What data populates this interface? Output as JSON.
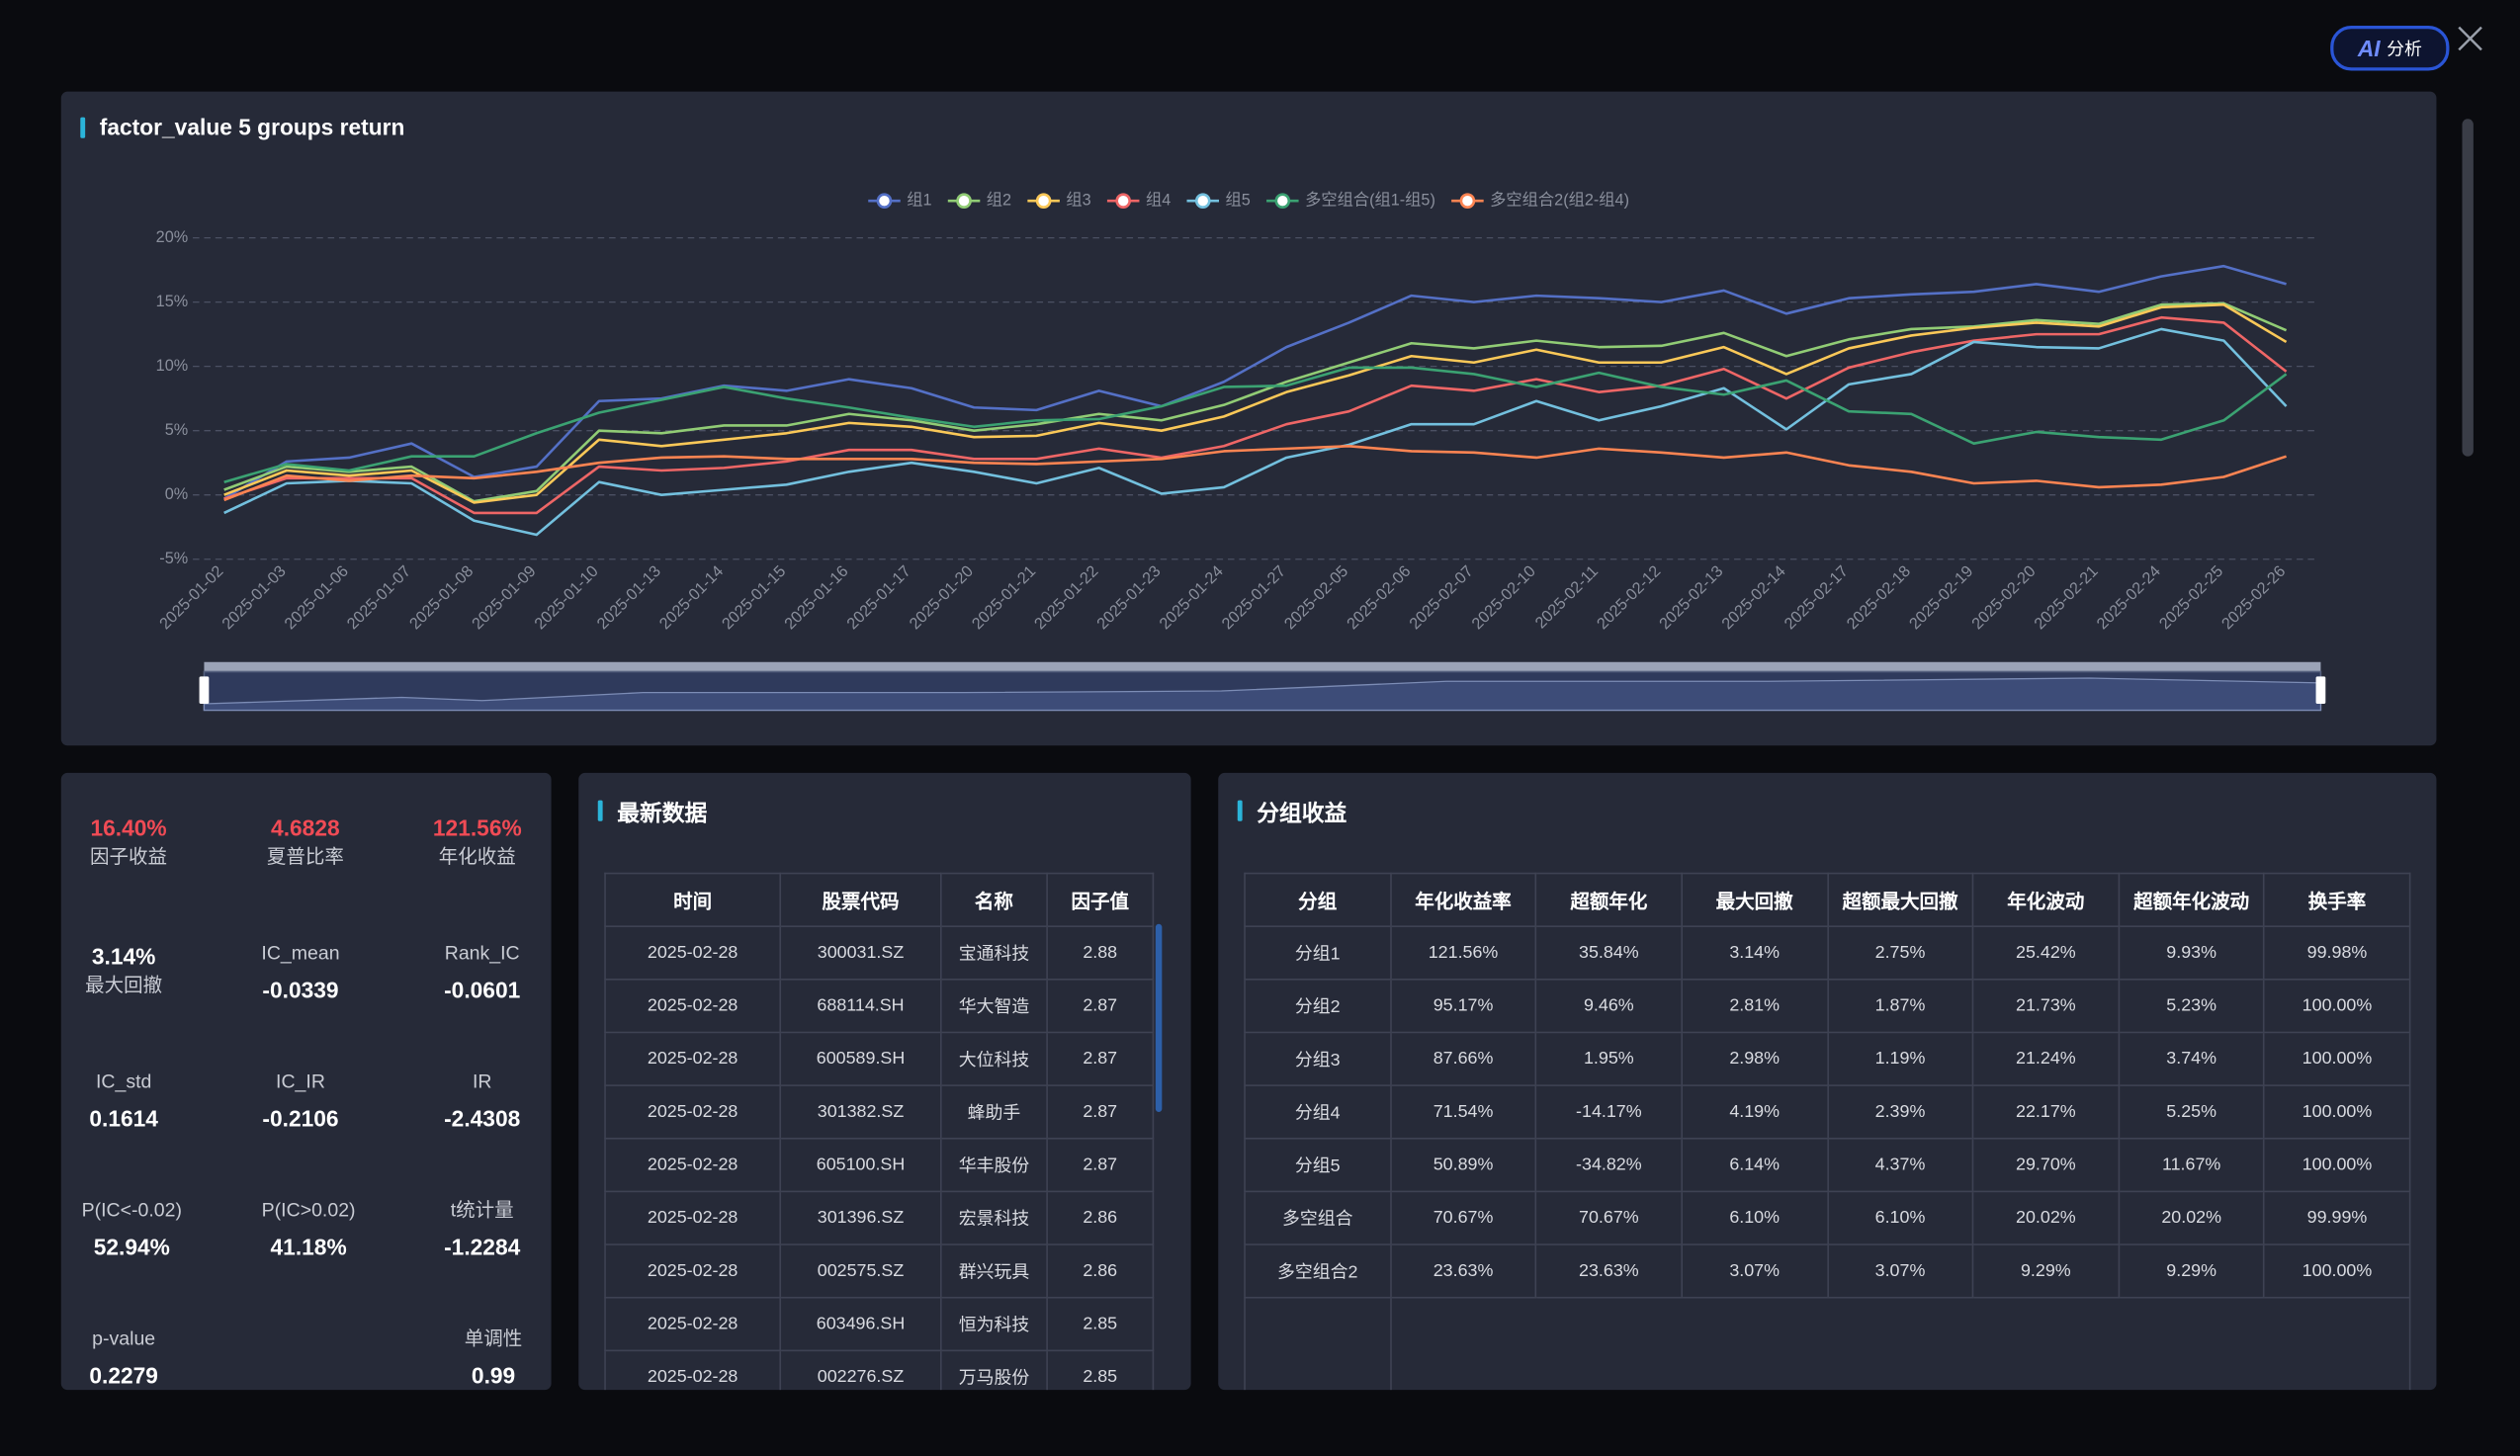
{
  "header": {
    "ai_label": "AI",
    "ai_button": "分析"
  },
  "chart_data": {
    "type": "line",
    "title": "factor_value 5 groups return",
    "categories": [
      "2025-01-02",
      "2025-01-03",
      "2025-01-06",
      "2025-01-07",
      "2025-01-08",
      "2025-01-09",
      "2025-01-10",
      "2025-01-13",
      "2025-01-14",
      "2025-01-15",
      "2025-01-16",
      "2025-01-17",
      "2025-01-20",
      "2025-01-21",
      "2025-01-22",
      "2025-01-23",
      "2025-01-24",
      "2025-01-27",
      "2025-02-05",
      "2025-02-06",
      "2025-02-07",
      "2025-02-10",
      "2025-02-11",
      "2025-02-12",
      "2025-02-13",
      "2025-02-14",
      "2025-02-17",
      "2025-02-18",
      "2025-02-19",
      "2025-02-20",
      "2025-02-21",
      "2025-02-24",
      "2025-02-25",
      "2025-02-26"
    ],
    "series": [
      {
        "name": "组1",
        "color": "#5470c6",
        "values": [
          -0.3,
          2.6,
          2.9,
          4.0,
          1.4,
          2.2,
          7.3,
          7.5,
          8.5,
          8.1,
          9.0,
          8.3,
          6.8,
          6.6,
          8.1,
          6.9,
          8.8,
          11.5,
          13.4,
          15.5,
          15.0,
          15.5,
          15.3,
          15.0,
          15.9,
          14.1,
          15.3,
          15.6,
          15.8,
          16.4,
          15.8,
          17.0,
          17.8,
          16.4
        ]
      },
      {
        "name": "组2",
        "color": "#91cc75",
        "values": [
          0.4,
          2.2,
          1.8,
          2.2,
          -0.5,
          0.3,
          5.0,
          4.8,
          5.4,
          5.4,
          6.3,
          5.8,
          5.0,
          5.5,
          6.3,
          5.8,
          7.0,
          8.8,
          10.3,
          11.8,
          11.4,
          12.0,
          11.5,
          11.6,
          12.6,
          10.8,
          12.1,
          12.9,
          13.1,
          13.6,
          13.3,
          14.8,
          14.9,
          12.8
        ]
      },
      {
        "name": "组3",
        "color": "#fac858",
        "values": [
          0.0,
          1.9,
          1.5,
          1.9,
          -0.6,
          0.0,
          4.3,
          3.8,
          4.3,
          4.8,
          5.6,
          5.3,
          4.5,
          4.6,
          5.6,
          5.0,
          6.1,
          8.0,
          9.3,
          10.8,
          10.3,
          11.3,
          10.3,
          10.3,
          11.5,
          9.4,
          11.4,
          12.4,
          13.0,
          13.4,
          13.1,
          14.6,
          14.8,
          11.9
        ]
      },
      {
        "name": "组4",
        "color": "#ee6666",
        "values": [
          -0.3,
          1.3,
          1.3,
          1.3,
          -1.4,
          -1.4,
          2.2,
          1.9,
          2.1,
          2.6,
          3.5,
          3.5,
          2.8,
          2.8,
          3.6,
          2.9,
          3.8,
          5.5,
          6.5,
          8.5,
          8.1,
          9.0,
          8.0,
          8.5,
          9.8,
          7.5,
          9.9,
          11.1,
          12.0,
          12.5,
          12.5,
          13.8,
          13.4,
          9.6
        ]
      },
      {
        "name": "组5",
        "color": "#73c0de",
        "values": [
          -1.4,
          0.9,
          1.1,
          0.9,
          -2.0,
          -3.1,
          1.0,
          0.0,
          0.4,
          0.8,
          1.8,
          2.5,
          1.8,
          0.9,
          2.1,
          0.1,
          0.6,
          2.9,
          3.9,
          5.5,
          5.5,
          7.3,
          5.8,
          6.9,
          8.3,
          5.1,
          8.6,
          9.4,
          11.9,
          11.5,
          11.4,
          12.9,
          12.0,
          6.9
        ]
      },
      {
        "name": "多空组合(组1-组5)",
        "color": "#3ba272",
        "values": [
          1.0,
          2.4,
          1.9,
          3.0,
          3.0,
          4.8,
          6.4,
          7.4,
          8.4,
          7.5,
          6.8,
          6.0,
          5.3,
          5.8,
          5.9,
          6.9,
          8.4,
          8.5,
          9.9,
          9.9,
          9.4,
          8.4,
          9.5,
          8.4,
          7.8,
          8.9,
          6.5,
          6.3,
          4.0,
          4.9,
          4.5,
          4.3,
          5.8,
          9.4
        ]
      },
      {
        "name": "多空组合2(组2-组4)",
        "color": "#fc8452",
        "values": [
          -0.4,
          1.5,
          1.1,
          1.5,
          1.3,
          1.8,
          2.5,
          2.9,
          3.0,
          2.8,
          2.8,
          2.8,
          2.5,
          2.4,
          2.6,
          2.8,
          3.4,
          3.6,
          3.8,
          3.4,
          3.3,
          2.9,
          3.6,
          3.3,
          2.9,
          3.3,
          2.3,
          1.8,
          0.9,
          1.1,
          0.6,
          0.8,
          1.4,
          3.0
        ]
      }
    ],
    "ylim": [
      -5,
      20
    ],
    "yticks": [
      {
        "value": -5,
        "label": "-5%"
      },
      {
        "value": 0,
        "label": "0%"
      },
      {
        "value": 5,
        "label": "5%"
      },
      {
        "value": 10,
        "label": "10%"
      },
      {
        "value": 15,
        "label": "15%"
      },
      {
        "value": 20,
        "label": "20%"
      }
    ],
    "grid": true,
    "legend": "top"
  },
  "stats": [
    {
      "value": "16.40%",
      "label": "因子收益"
    },
    {
      "value": "4.6828",
      "label": "夏普比率"
    },
    {
      "value": "121.56%",
      "label": "年化收益"
    },
    {
      "value": "3.14%",
      "label": "最大回撤"
    },
    {
      "label": "IC_mean",
      "value": "-0.0339"
    },
    {
      "label": "Rank_IC",
      "value": "-0.0601"
    },
    {
      "label": "IC_std",
      "value": "0.1614"
    },
    {
      "label": "IC_IR",
      "value": "-0.2106"
    },
    {
      "label": "IR",
      "value": "-2.4308"
    },
    {
      "label": "P(IC<-0.02)",
      "value": "52.94%"
    },
    {
      "label": "P(IC>0.02)",
      "value": "41.18%"
    },
    {
      "label": "t统计量",
      "value": "-1.2284"
    },
    {
      "label": "p-value",
      "value": "0.2279"
    },
    {
      "label": "单调性",
      "value": "0.99"
    }
  ],
  "latest": {
    "title": "最新数据",
    "columns": [
      "时间",
      "股票代码",
      "名称",
      "因子值"
    ],
    "rows": [
      [
        "2025-02-28",
        "300031.SZ",
        "宝通科技",
        "2.88"
      ],
      [
        "2025-02-28",
        "688114.SH",
        "华大智造",
        "2.87"
      ],
      [
        "2025-02-28",
        "600589.SH",
        "大位科技",
        "2.87"
      ],
      [
        "2025-02-28",
        "301382.SZ",
        "蜂助手",
        "2.87"
      ],
      [
        "2025-02-28",
        "605100.SH",
        "华丰股份",
        "2.87"
      ],
      [
        "2025-02-28",
        "301396.SZ",
        "宏景科技",
        "2.86"
      ],
      [
        "2025-02-28",
        "002575.SZ",
        "群兴玩具",
        "2.86"
      ],
      [
        "2025-02-28",
        "603496.SH",
        "恒为科技",
        "2.85"
      ],
      [
        "2025-02-28",
        "002276.SZ",
        "万马股份",
        "2.85"
      ]
    ]
  },
  "group_returns": {
    "title": "分组收益",
    "columns": [
      "分组",
      "年化收益率",
      "超额年化",
      "最大回撤",
      "超额最大回撤",
      "年化波动",
      "超额年化波动",
      "换手率"
    ],
    "rows": [
      [
        "分组1",
        "121.56%",
        "35.84%",
        "3.14%",
        "2.75%",
        "25.42%",
        "9.93%",
        "99.98%"
      ],
      [
        "分组2",
        "95.17%",
        "9.46%",
        "2.81%",
        "1.87%",
        "21.73%",
        "5.23%",
        "100.00%"
      ],
      [
        "分组3",
        "87.66%",
        "1.95%",
        "2.98%",
        "1.19%",
        "21.24%",
        "3.74%",
        "100.00%"
      ],
      [
        "分组4",
        "71.54%",
        "-14.17%",
        "4.19%",
        "2.39%",
        "22.17%",
        "5.25%",
        "100.00%"
      ],
      [
        "分组5",
        "50.89%",
        "-34.82%",
        "6.14%",
        "4.37%",
        "29.70%",
        "11.67%",
        "100.00%"
      ],
      [
        "多空组合",
        "70.67%",
        "70.67%",
        "6.10%",
        "6.10%",
        "20.02%",
        "20.02%",
        "99.99%"
      ],
      [
        "多空组合2",
        "23.63%",
        "23.63%",
        "3.07%",
        "3.07%",
        "9.29%",
        "9.29%",
        "100.00%"
      ]
    ]
  }
}
